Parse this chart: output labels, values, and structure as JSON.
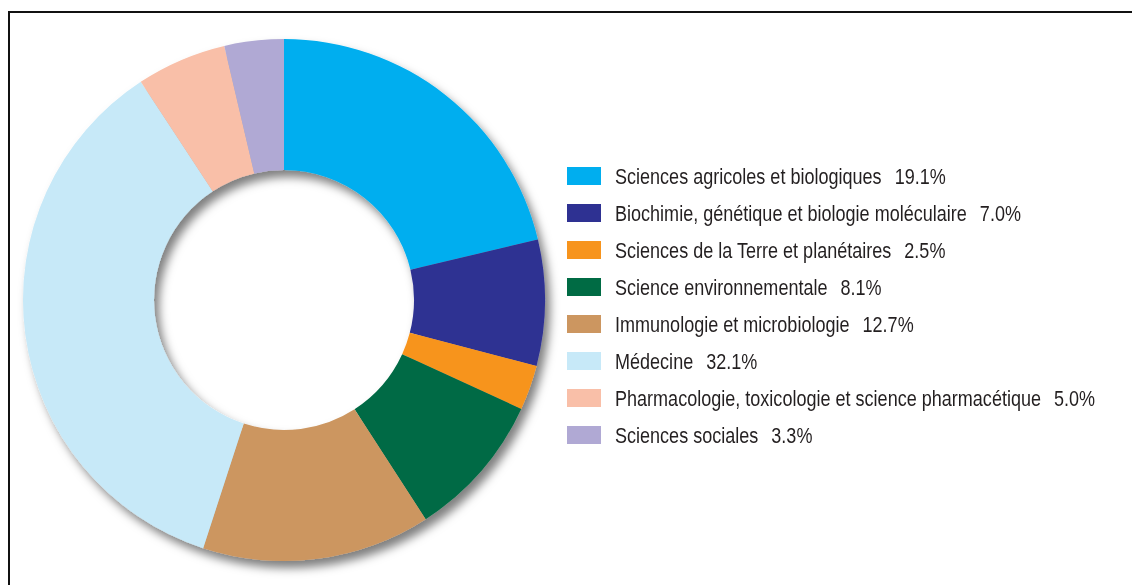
{
  "chart_data": {
    "type": "donut",
    "categories": [
      "Sciences agricoles et biologiques",
      "Biochimie, génétique et biologie moléculaire",
      "Sciences de la Terre et planétaires",
      "Science environnementale",
      "Immunologie et microbiologie",
      "Médecine",
      "Pharmacologie, toxicologie et science pharmacétique",
      "Sciences sociales"
    ],
    "values": [
      19.1,
      7.0,
      2.5,
      8.1,
      12.7,
      32.1,
      5.0,
      3.3
    ],
    "colors": [
      "#00aeef",
      "#2e3192",
      "#f7941d",
      "#006b44",
      "#cc9660",
      "#c7e9f8",
      "#f9bfa8",
      "#b0a9d4"
    ],
    "value_labels": [
      "19.1%",
      "7.0%",
      "2.5%",
      "8.1%",
      "12.7%",
      "32.1%",
      "5.0%",
      "3.3%"
    ],
    "legend": "right"
  }
}
